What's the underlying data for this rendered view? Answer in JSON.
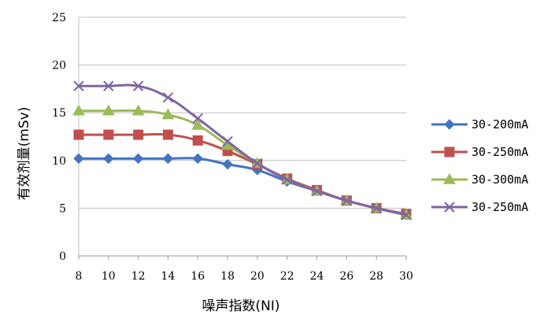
{
  "chart_data": {
    "type": "line",
    "title": "",
    "xlabel": "噪声指数(NI)",
    "ylabel": "有效剂量(mSv)",
    "x": [
      8,
      10,
      12,
      14,
      16,
      18,
      20,
      22,
      24,
      26,
      28,
      30
    ],
    "xlim": [
      8,
      30
    ],
    "ylim": [
      0,
      25
    ],
    "y_ticks": [
      0,
      5,
      10,
      15,
      20,
      25
    ],
    "grid": "horizontal",
    "legend_position": "right",
    "series": [
      {
        "name": "30-200mA",
        "color": "#4472C4",
        "marker": "diamond",
        "values": [
          10.2,
          10.2,
          10.2,
          10.2,
          10.2,
          9.6,
          9.0,
          7.8,
          6.8,
          5.8,
          5.0,
          4.3
        ]
      },
      {
        "name": "30-250mA",
        "color": "#C0504D",
        "marker": "square",
        "values": [
          12.7,
          12.7,
          12.7,
          12.7,
          12.1,
          11.0,
          9.6,
          8.1,
          6.9,
          5.8,
          5.0,
          4.4
        ]
      },
      {
        "name": "30-300mA",
        "color": "#9BBB59",
        "marker": "triangle",
        "values": [
          15.2,
          15.2,
          15.2,
          14.8,
          13.7,
          11.6,
          9.7,
          8.0,
          6.8,
          5.8,
          5.0,
          4.3
        ]
      },
      {
        "name": "30-250mA",
        "color": "#8064A2",
        "marker": "x",
        "values": [
          17.8,
          17.8,
          17.8,
          16.6,
          14.4,
          12.0,
          9.7,
          8.0,
          6.8,
          5.8,
          5.0,
          4.3
        ]
      }
    ]
  }
}
